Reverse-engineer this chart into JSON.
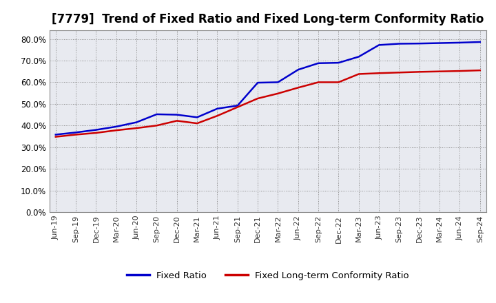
{
  "title": "[7779]  Trend of Fixed Ratio and Fixed Long-term Conformity Ratio",
  "title_fontsize": 12,
  "ylim": [
    0.0,
    0.84
  ],
  "yticks": [
    0.0,
    0.1,
    0.2,
    0.3,
    0.4,
    0.5,
    0.6,
    0.7,
    0.8
  ],
  "background_color": "#ffffff",
  "plot_bg_color": "#e8eaf0",
  "grid_color": "#888888",
  "legend_labels": [
    "Fixed Ratio",
    "Fixed Long-term Conformity Ratio"
  ],
  "line_colors": [
    "#0000cc",
    "#cc0000"
  ],
  "line_width": 1.8,
  "x_labels": [
    "Jun-19",
    "Sep-19",
    "Dec-19",
    "Mar-20",
    "Jun-20",
    "Sep-20",
    "Dec-20",
    "Mar-21",
    "Jun-21",
    "Sep-21",
    "Dec-21",
    "Mar-22",
    "Jun-22",
    "Sep-22",
    "Dec-22",
    "Mar-23",
    "Jun-23",
    "Sep-23",
    "Dec-23",
    "Mar-24",
    "Jun-24",
    "Sep-24"
  ],
  "fixed_ratio": [
    0.358,
    0.368,
    0.38,
    0.395,
    0.415,
    0.452,
    0.45,
    0.438,
    0.478,
    0.492,
    0.598,
    0.6,
    0.658,
    0.688,
    0.69,
    0.718,
    0.772,
    0.778,
    0.779,
    0.781,
    0.783,
    0.786
  ],
  "fixed_lt_ratio": [
    0.348,
    0.358,
    0.366,
    0.378,
    0.388,
    0.4,
    0.422,
    0.41,
    0.445,
    0.485,
    0.525,
    0.548,
    0.575,
    0.6,
    0.6,
    0.638,
    0.642,
    0.645,
    0.648,
    0.65,
    0.652,
    0.655
  ]
}
